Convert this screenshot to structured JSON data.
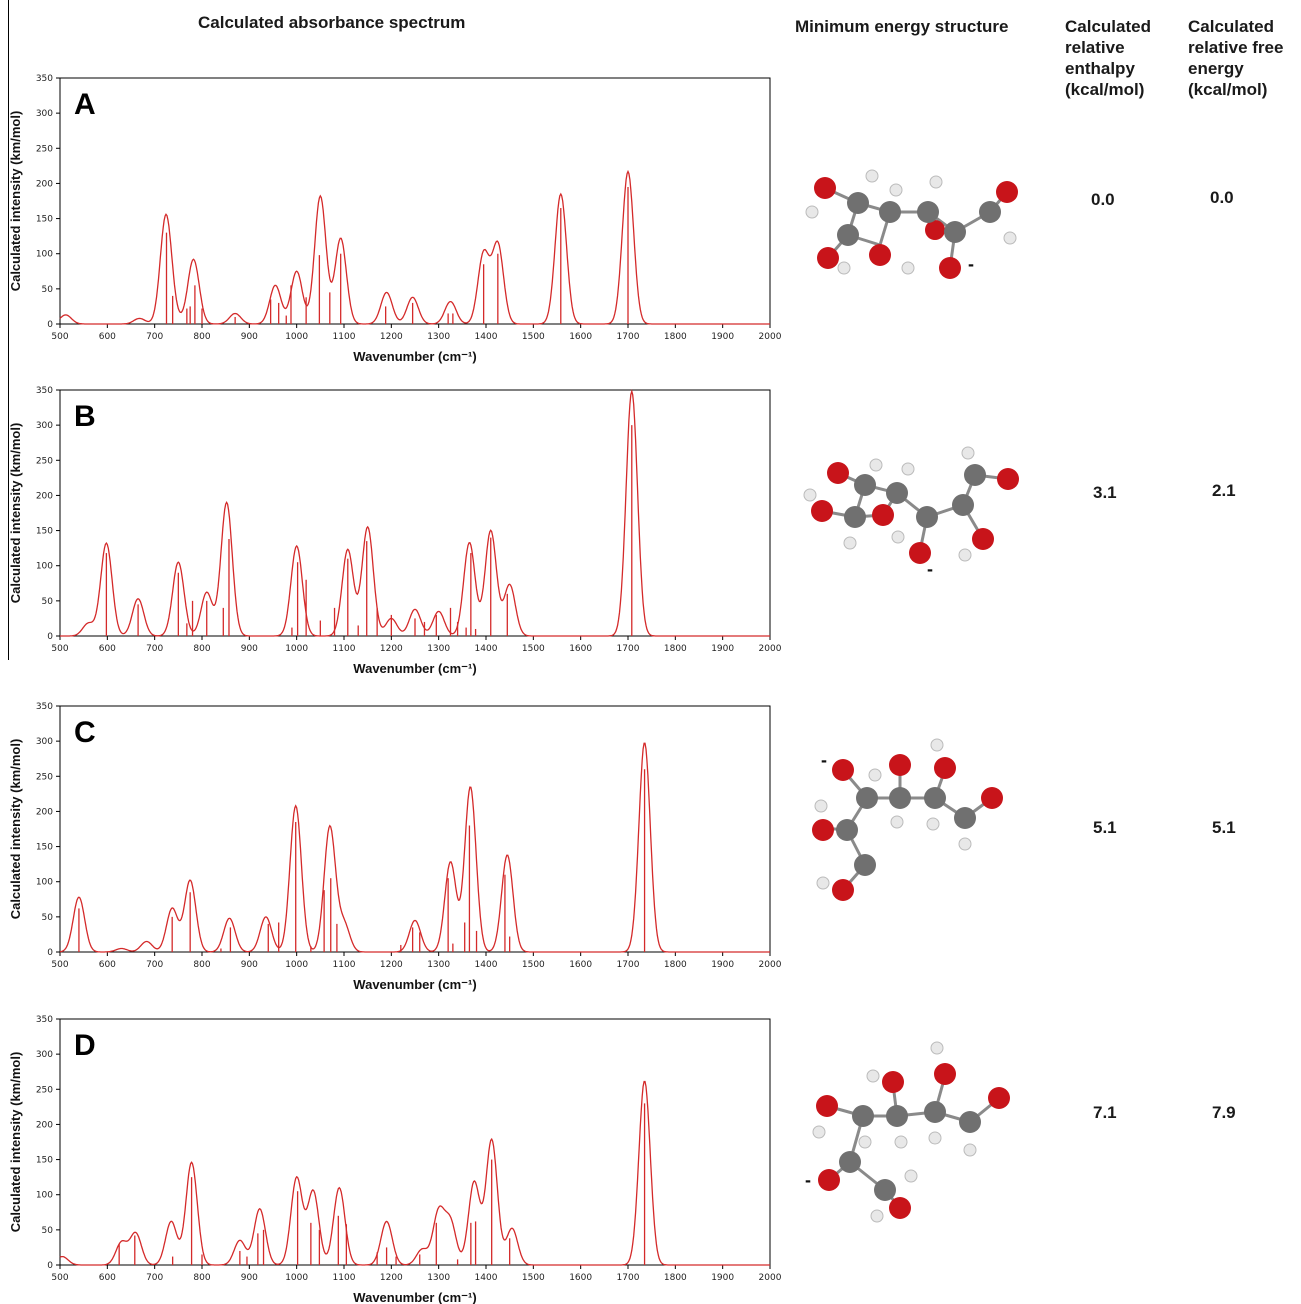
{
  "headers": {
    "spectrum": "Calculated absorbance spectrum",
    "structure": "Minimum energy structure",
    "enthalpy": [
      "Calculated",
      "relative",
      "enthalpy",
      "(kcal/mol)"
    ],
    "free_energy": [
      "Calculated",
      "relative free",
      "energy",
      "(kcal/mol)"
    ]
  },
  "colors": {
    "spectrum": "#d42a2a",
    "oxygen": "#c8141a",
    "carbon": "#707070",
    "hydrogen": "#e8e8e8"
  },
  "chart_data": [
    {
      "type": "line",
      "panel": "A",
      "xlabel": "Wavenumber (cm⁻¹)",
      "ylabel": "Calculated intensity (km/mol)",
      "xlim": [
        500,
        2000
      ],
      "ylim": [
        0,
        350
      ],
      "xticks": [
        500,
        600,
        700,
        800,
        900,
        1000,
        1100,
        1200,
        1300,
        1400,
        1500,
        1600,
        1700,
        1800,
        1900,
        2000
      ],
      "yticks": [
        0,
        50,
        100,
        150,
        200,
        250,
        300,
        350
      ],
      "peaks": [
        [
          512,
          13
        ],
        [
          668,
          8
        ],
        [
          724,
          155
        ],
        [
          745,
          5
        ],
        [
          782,
          92
        ],
        [
          870,
          15
        ],
        [
          955,
          55
        ],
        [
          1000,
          75
        ],
        [
          1050,
          182
        ],
        [
          1093,
          122
        ],
        [
          1190,
          45
        ],
        [
          1245,
          38
        ],
        [
          1325,
          32
        ],
        [
          1395,
          100
        ],
        [
          1425,
          113
        ],
        [
          1558,
          185
        ],
        [
          1700,
          217
        ]
      ],
      "sticks": [
        [
          725,
          130
        ],
        [
          738,
          40
        ],
        [
          768,
          22
        ],
        [
          775,
          25
        ],
        [
          785,
          55
        ],
        [
          800,
          22
        ],
        [
          870,
          10
        ],
        [
          945,
          35
        ],
        [
          962,
          30
        ],
        [
          978,
          12
        ],
        [
          988,
          55
        ],
        [
          1020,
          38
        ],
        [
          1048,
          98
        ],
        [
          1070,
          45
        ],
        [
          1093,
          100
        ],
        [
          1188,
          25
        ],
        [
          1245,
          30
        ],
        [
          1320,
          15
        ],
        [
          1330,
          15
        ],
        [
          1395,
          85
        ],
        [
          1425,
          100
        ],
        [
          1558,
          165
        ],
        [
          1700,
          195
        ]
      ],
      "enthalpy": "0.0",
      "free_energy": "0.0"
    },
    {
      "type": "line",
      "panel": "B",
      "xlabel": "Wavenumber (cm⁻¹)",
      "ylabel": "Calculated intensity (km/mol)",
      "xlim": [
        500,
        2000
      ],
      "ylim": [
        0,
        350
      ],
      "xticks": [
        500,
        600,
        700,
        800,
        900,
        1000,
        1100,
        1200,
        1300,
        1400,
        1500,
        1600,
        1700,
        1800,
        1900,
        2000
      ],
      "yticks": [
        0,
        50,
        100,
        150,
        200,
        250,
        300,
        350
      ],
      "peaks": [
        [
          560,
          18
        ],
        [
          598,
          132
        ],
        [
          665,
          53
        ],
        [
          750,
          105
        ],
        [
          810,
          62
        ],
        [
          852,
          190
        ],
        [
          1000,
          128
        ],
        [
          1108,
          123
        ],
        [
          1150,
          155
        ],
        [
          1200,
          25
        ],
        [
          1250,
          38
        ],
        [
          1300,
          35
        ],
        [
          1365,
          133
        ],
        [
          1410,
          150
        ],
        [
          1450,
          73
        ],
        [
          1708,
          348
        ]
      ],
      "sticks": [
        [
          598,
          118
        ],
        [
          665,
          45
        ],
        [
          750,
          90
        ],
        [
          768,
          18
        ],
        [
          780,
          50
        ],
        [
          810,
          50
        ],
        [
          845,
          40
        ],
        [
          857,
          138
        ],
        [
          990,
          12
        ],
        [
          1002,
          105
        ],
        [
          1020,
          80
        ],
        [
          1050,
          22
        ],
        [
          1080,
          40
        ],
        [
          1108,
          110
        ],
        [
          1130,
          15
        ],
        [
          1148,
          135
        ],
        [
          1170,
          40
        ],
        [
          1200,
          30
        ],
        [
          1250,
          25
        ],
        [
          1270,
          20
        ],
        [
          1295,
          30
        ],
        [
          1325,
          40
        ],
        [
          1340,
          20
        ],
        [
          1358,
          12
        ],
        [
          1368,
          118
        ],
        [
          1378,
          10
        ],
        [
          1410,
          140
        ],
        [
          1445,
          60
        ],
        [
          1708,
          300
        ]
      ],
      "enthalpy": "3.1",
      "free_energy": "2.1"
    },
    {
      "type": "line",
      "panel": "C",
      "xlabel": "Wavenumber (cm⁻¹)",
      "ylabel": "Calculated intensity (km/mol)",
      "xlim": [
        500,
        2000
      ],
      "ylim": [
        0,
        350
      ],
      "xticks": [
        500,
        600,
        700,
        800,
        900,
        1000,
        1100,
        1200,
        1300,
        1400,
        1500,
        1600,
        1700,
        1800,
        1900,
        2000
      ],
      "yticks": [
        0,
        50,
        100,
        150,
        200,
        250,
        300,
        350
      ],
      "peaks": [
        [
          540,
          78
        ],
        [
          630,
          5
        ],
        [
          683,
          15
        ],
        [
          737,
          62
        ],
        [
          775,
          102
        ],
        [
          858,
          48
        ],
        [
          935,
          50
        ],
        [
          998,
          208
        ],
        [
          1070,
          178
        ],
        [
          1100,
          40
        ],
        [
          1250,
          45
        ],
        [
          1325,
          128
        ],
        [
          1367,
          235
        ],
        [
          1445,
          138
        ],
        [
          1735,
          298
        ]
      ],
      "sticks": [
        [
          540,
          62
        ],
        [
          737,
          50
        ],
        [
          775,
          85
        ],
        [
          840,
          5
        ],
        [
          860,
          35
        ],
        [
          940,
          40
        ],
        [
          962,
          42
        ],
        [
          998,
          185
        ],
        [
          1030,
          8
        ],
        [
          1058,
          88
        ],
        [
          1072,
          105
        ],
        [
          1085,
          40
        ],
        [
          1220,
          10
        ],
        [
          1245,
          35
        ],
        [
          1260,
          28
        ],
        [
          1320,
          105
        ],
        [
          1330,
          12
        ],
        [
          1355,
          42
        ],
        [
          1365,
          180
        ],
        [
          1380,
          30
        ],
        [
          1440,
          110
        ],
        [
          1450,
          22
        ],
        [
          1735,
          260
        ]
      ],
      "enthalpy": "5.1",
      "free_energy": "5.1"
    },
    {
      "type": "line",
      "panel": "D",
      "xlabel": "Wavenumber (cm⁻¹)",
      "ylabel": "Calculated intensity (km/mol)",
      "xlim": [
        500,
        2000
      ],
      "ylim": [
        0,
        350
      ],
      "xticks": [
        500,
        600,
        700,
        800,
        900,
        1000,
        1100,
        1200,
        1300,
        1400,
        1500,
        1600,
        1700,
        1800,
        1900,
        2000
      ],
      "yticks": [
        0,
        50,
        100,
        150,
        200,
        250,
        300,
        350
      ],
      "peaks": [
        [
          505,
          12
        ],
        [
          630,
          32
        ],
        [
          660,
          45
        ],
        [
          735,
          62
        ],
        [
          778,
          146
        ],
        [
          880,
          35
        ],
        [
          922,
          80
        ],
        [
          1000,
          124
        ],
        [
          1035,
          105
        ],
        [
          1090,
          110
        ],
        [
          1190,
          62
        ],
        [
          1265,
          22
        ],
        [
          1300,
          75
        ],
        [
          1325,
          60
        ],
        [
          1375,
          118
        ],
        [
          1412,
          178
        ],
        [
          1455,
          52
        ],
        [
          1735,
          262
        ]
      ],
      "sticks": [
        [
          625,
          30
        ],
        [
          658,
          42
        ],
        [
          738,
          12
        ],
        [
          778,
          125
        ],
        [
          800,
          15
        ],
        [
          880,
          20
        ],
        [
          895,
          12
        ],
        [
          918,
          45
        ],
        [
          930,
          50
        ],
        [
          1002,
          105
        ],
        [
          1030,
          60
        ],
        [
          1048,
          50
        ],
        [
          1088,
          70
        ],
        [
          1105,
          58
        ],
        [
          1170,
          18
        ],
        [
          1190,
          25
        ],
        [
          1210,
          12
        ],
        [
          1260,
          15
        ],
        [
          1295,
          60
        ],
        [
          1340,
          8
        ],
        [
          1368,
          60
        ],
        [
          1378,
          62
        ],
        [
          1412,
          150
        ],
        [
          1450,
          38
        ],
        [
          1735,
          230
        ]
      ],
      "enthalpy": "7.1",
      "free_energy": "7.9"
    }
  ],
  "molecules": [
    {
      "charge": "-"
    },
    {
      "charge": "-"
    },
    {
      "charge": "-"
    },
    {
      "charge": "-"
    }
  ]
}
